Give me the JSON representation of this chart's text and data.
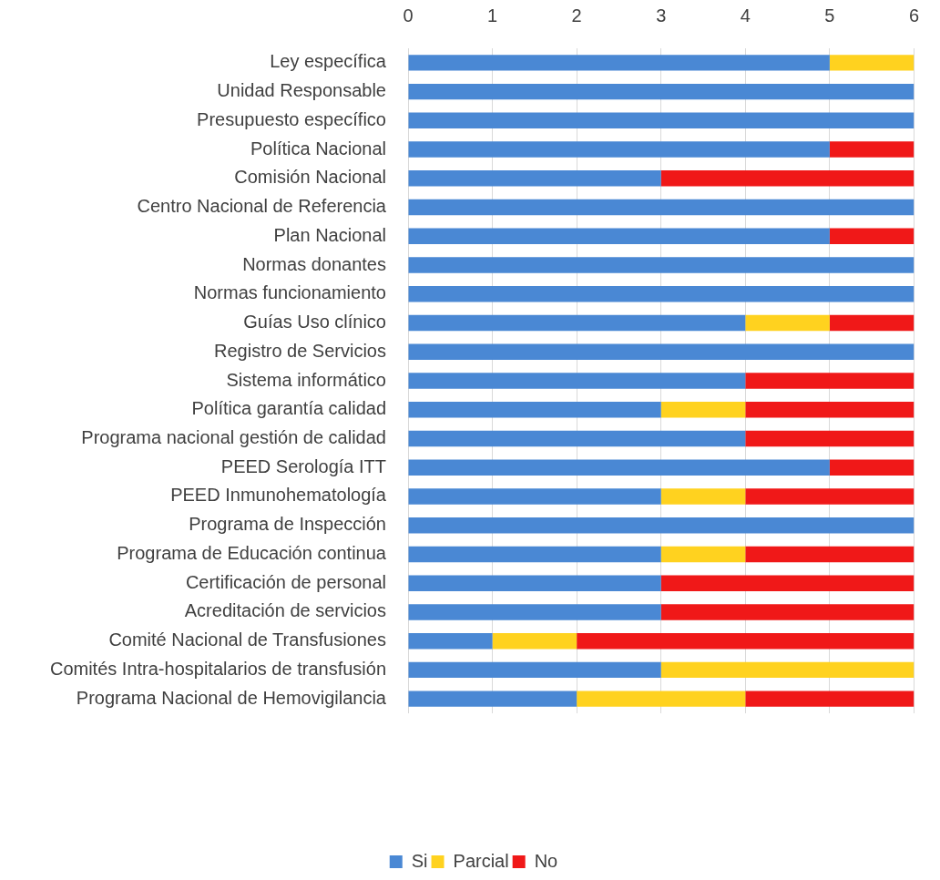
{
  "chart_data": {
    "type": "bar",
    "orientation": "horizontal",
    "stacked": true,
    "categories": [
      "Ley específica",
      "Unidad Responsable",
      "Presupuesto específico",
      "Política Nacional",
      "Comisión Nacional",
      "Centro Nacional de Referencia",
      "Plan Nacional",
      "Normas donantes",
      "Normas funcionamiento",
      "Guías Uso clínico",
      "Registro de Servicios",
      "Sistema informático",
      "Política garantía calidad",
      "Programa nacional gestión de calidad",
      "PEED Serología ITT",
      "PEED Inmunohematología",
      "Programa de Inspección",
      "Programa de Educación continua",
      "Certificación de personal",
      "Acreditación de servicios",
      "Comité Nacional de Transfusiones",
      "Comités Intra-hospitalarios de transfusión",
      "Programa Nacional de Hemovigilancia"
    ],
    "series": [
      {
        "name": "Si",
        "color": "#4a88d4",
        "values": [
          5,
          6,
          6,
          5,
          3,
          6,
          5,
          6,
          6,
          4,
          6,
          4,
          3,
          4,
          5,
          3,
          6,
          3,
          3,
          3,
          1,
          3,
          2
        ]
      },
      {
        "name": "Parcial",
        "color": "#ffd21f",
        "values": [
          1,
          0,
          0,
          0,
          0,
          0,
          0,
          0,
          0,
          1,
          0,
          0,
          1,
          0,
          0,
          1,
          0,
          1,
          0,
          0,
          1,
          3,
          2
        ]
      },
      {
        "name": "No",
        "color": "#f01818",
        "values": [
          0,
          0,
          0,
          1,
          3,
          0,
          1,
          0,
          0,
          1,
          0,
          2,
          2,
          2,
          1,
          2,
          0,
          2,
          3,
          3,
          4,
          0,
          2
        ]
      }
    ],
    "xlim": [
      0,
      6
    ],
    "xticks": [
      0,
      1,
      2,
      3,
      4,
      5,
      6
    ],
    "grid": "x",
    "legend": "bottom"
  }
}
